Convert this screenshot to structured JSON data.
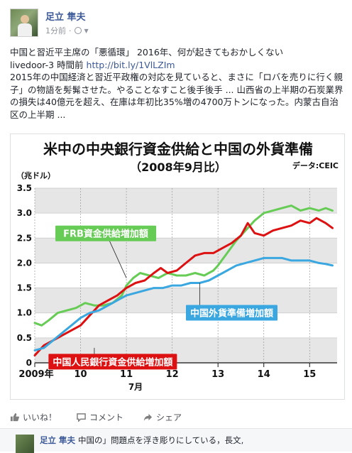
{
  "post": {
    "author": "足立 隼夫",
    "time": "1分前",
    "separator": "·",
    "text_line1": "中国と習近平主席の「悪循環」 2016年、何が起きてもおかしくない",
    "source": "livedoor-3 時間前",
    "link": "http://bit.ly/1VlLZIm",
    "body": "2015年の中国経済と習近平政権の対応を見ていると、まさに「ロバを売りに行く親子」の物語を髣髴させた。やることなすこと後手後手 ... 山西省の上半期の石炭業界の損失は40億元を超え、在庫は年初比35%増の4700万トンになった。内蒙古自治区の上半期 ..."
  },
  "actions": {
    "like": "いいね！",
    "comment": "コメント",
    "share": "シェア"
  },
  "comment": {
    "author": "足立 隼夫",
    "text": "中国の」問題点を浮き彫りにしている，長文,"
  },
  "colors": {
    "link": "#3b5998",
    "green": "#66cc55",
    "red": "#dd1111",
    "blue": "#3aa7e0"
  },
  "icons": {
    "like": "thumbs-up-icon",
    "comment": "speech-bubble-icon",
    "share": "share-arrow-icon",
    "privacy": "globe-icon"
  },
  "chart_data": {
    "type": "line",
    "title": "米中の中央銀行資金供給と中国の外貨準備",
    "subtitle": "（2008年9月比）",
    "source": "データ:CEIC",
    "ylabel": "（兆ドル）",
    "ylim": [
      0,
      3.5
    ],
    "yticks": [
      0,
      0.5,
      1.0,
      1.5,
      2.0,
      2.5,
      3.0,
      3.5
    ],
    "ytick_labels": [
      "0",
      "0.5",
      "1.0",
      "1.5",
      "2.0",
      "2.5",
      "3.0",
      "3.5"
    ],
    "xlim": [
      2009,
      2015.6
    ],
    "xticks": [
      2009,
      2010,
      2011,
      2012,
      2013,
      2014,
      2015
    ],
    "xtick_labels": [
      "2009年",
      "10",
      "11",
      "12",
      "13",
      "14",
      "15"
    ],
    "x_extra_label": "7月",
    "series": [
      {
        "name": "FRB資金供給増加額",
        "color": "#66cc55",
        "points": [
          [
            2009.0,
            0.8
          ],
          [
            2009.15,
            0.75
          ],
          [
            2009.3,
            0.85
          ],
          [
            2009.5,
            1.0
          ],
          [
            2009.7,
            1.05
          ],
          [
            2009.9,
            1.1
          ],
          [
            2010.1,
            1.2
          ],
          [
            2010.3,
            1.15
          ],
          [
            2010.5,
            1.15
          ],
          [
            2010.7,
            1.2
          ],
          [
            2010.9,
            1.35
          ],
          [
            2011.0,
            1.55
          ],
          [
            2011.15,
            1.7
          ],
          [
            2011.3,
            1.8
          ],
          [
            2011.5,
            1.75
          ],
          [
            2011.7,
            1.7
          ],
          [
            2011.9,
            1.8
          ],
          [
            2012.1,
            1.75
          ],
          [
            2012.3,
            1.75
          ],
          [
            2012.5,
            1.8
          ],
          [
            2012.7,
            1.75
          ],
          [
            2012.9,
            1.85
          ],
          [
            2013.0,
            1.95
          ],
          [
            2013.2,
            2.2
          ],
          [
            2013.4,
            2.45
          ],
          [
            2013.6,
            2.65
          ],
          [
            2013.8,
            2.85
          ],
          [
            2014.0,
            3.0
          ],
          [
            2014.2,
            3.05
          ],
          [
            2014.4,
            3.1
          ],
          [
            2014.6,
            3.15
          ],
          [
            2014.8,
            3.05
          ],
          [
            2015.0,
            3.1
          ],
          [
            2015.2,
            3.05
          ],
          [
            2015.35,
            3.1
          ],
          [
            2015.5,
            3.05
          ]
        ]
      },
      {
        "name": "中国人民銀行資金供給増加額",
        "color": "#dd1111",
        "points": [
          [
            2009.0,
            0.15
          ],
          [
            2009.2,
            0.35
          ],
          [
            2009.4,
            0.45
          ],
          [
            2009.6,
            0.55
          ],
          [
            2009.8,
            0.65
          ],
          [
            2010.0,
            0.75
          ],
          [
            2010.2,
            0.95
          ],
          [
            2010.4,
            1.15
          ],
          [
            2010.6,
            1.25
          ],
          [
            2010.8,
            1.35
          ],
          [
            2011.0,
            1.5
          ],
          [
            2011.2,
            1.6
          ],
          [
            2011.4,
            1.65
          ],
          [
            2011.6,
            1.8
          ],
          [
            2011.75,
            1.9
          ],
          [
            2011.9,
            1.8
          ],
          [
            2012.1,
            1.85
          ],
          [
            2012.3,
            2.0
          ],
          [
            2012.5,
            2.15
          ],
          [
            2012.7,
            2.2
          ],
          [
            2012.9,
            2.2
          ],
          [
            2013.1,
            2.3
          ],
          [
            2013.3,
            2.4
          ],
          [
            2013.5,
            2.55
          ],
          [
            2013.65,
            2.8
          ],
          [
            2013.8,
            2.6
          ],
          [
            2014.0,
            2.55
          ],
          [
            2014.2,
            2.65
          ],
          [
            2014.4,
            2.7
          ],
          [
            2014.6,
            2.75
          ],
          [
            2014.8,
            2.85
          ],
          [
            2015.0,
            2.8
          ],
          [
            2015.15,
            2.9
          ],
          [
            2015.35,
            2.8
          ],
          [
            2015.5,
            2.7
          ]
        ]
      },
      {
        "name": "中国外貨準備増加額",
        "color": "#3aa7e0",
        "points": [
          [
            2009.0,
            0.25
          ],
          [
            2009.2,
            0.3
          ],
          [
            2009.4,
            0.45
          ],
          [
            2009.6,
            0.6
          ],
          [
            2009.8,
            0.75
          ],
          [
            2010.0,
            0.9
          ],
          [
            2010.2,
            1.0
          ],
          [
            2010.4,
            1.05
          ],
          [
            2010.6,
            1.15
          ],
          [
            2010.8,
            1.25
          ],
          [
            2011.0,
            1.35
          ],
          [
            2011.2,
            1.4
          ],
          [
            2011.4,
            1.45
          ],
          [
            2011.6,
            1.5
          ],
          [
            2011.8,
            1.5
          ],
          [
            2012.0,
            1.55
          ],
          [
            2012.2,
            1.55
          ],
          [
            2012.4,
            1.6
          ],
          [
            2012.6,
            1.6
          ],
          [
            2012.8,
            1.65
          ],
          [
            2013.0,
            1.75
          ],
          [
            2013.2,
            1.85
          ],
          [
            2013.4,
            1.95
          ],
          [
            2013.6,
            2.0
          ],
          [
            2013.8,
            2.05
          ],
          [
            2014.0,
            2.1
          ],
          [
            2014.2,
            2.1
          ],
          [
            2014.4,
            2.1
          ],
          [
            2014.6,
            2.05
          ],
          [
            2014.8,
            2.05
          ],
          [
            2015.0,
            2.05
          ],
          [
            2015.2,
            2.0
          ],
          [
            2015.35,
            1.98
          ],
          [
            2015.5,
            1.95
          ]
        ]
      }
    ],
    "legend": [
      {
        "text": "FRB資金供給増加額",
        "color": "#66cc55",
        "series": 0
      },
      {
        "text": "中国人民銀行資金供給増加額",
        "color": "#dd1111",
        "series": 1
      },
      {
        "text": "中国外貨準備増加額",
        "color": "#3aa7e0",
        "series": 2
      }
    ],
    "grid": "horizontal bands"
  }
}
